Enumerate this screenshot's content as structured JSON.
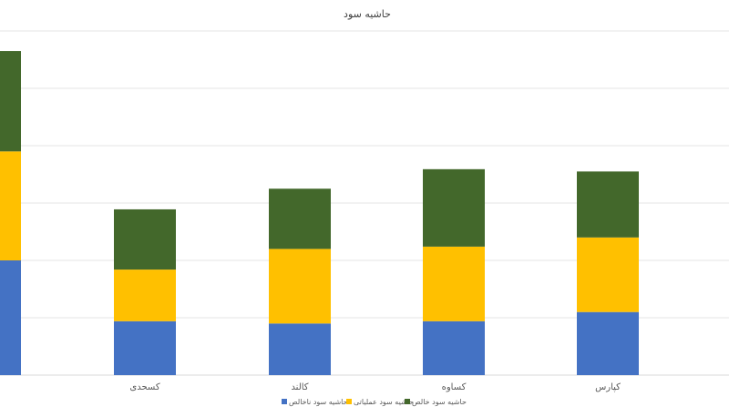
{
  "chart_data": {
    "type": "bar",
    "stacked": true,
    "title": "حاشیه سود",
    "categories": [
      "",
      "کسحدی",
      "کالند",
      "کساوه",
      "کپارس"
    ],
    "series": [
      {
        "name": "حاشیه سود ناخالص",
        "color": "#4472C4",
        "values": [
          20,
          9.4,
          9.0,
          9.4,
          11.0
        ]
      },
      {
        "name": "حاشیه سود عملیاتی",
        "color": "#FFC000",
        "values": [
          19,
          9.0,
          13.0,
          13.0,
          13.0
        ]
      },
      {
        "name": "حاشیه سود خالص",
        "color": "#43682B",
        "values": [
          17.5,
          10.5,
          10.5,
          13.5,
          11.5
        ]
      }
    ],
    "ylim": [
      0,
      60
    ],
    "grid": true,
    "legend": "bottom"
  }
}
